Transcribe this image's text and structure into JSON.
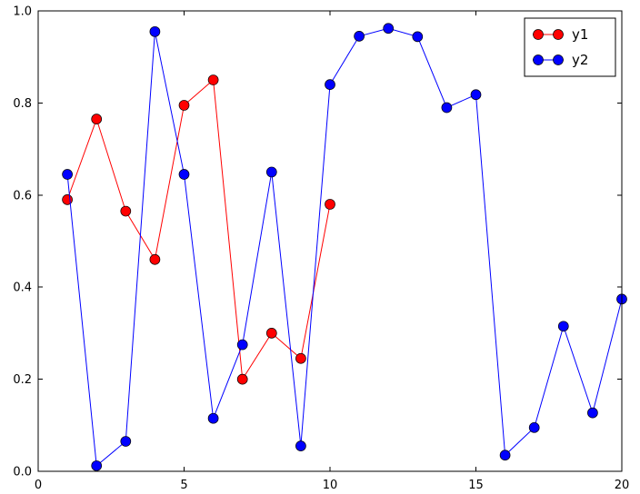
{
  "chart_data": {
    "type": "line",
    "title": "",
    "xlabel": "",
    "ylabel": "",
    "xlim": [
      0,
      20
    ],
    "ylim": [
      0,
      1.0
    ],
    "xticks": [
      0,
      5,
      10,
      15,
      20
    ],
    "xtick_labels": [
      "0",
      "5",
      "10",
      "15",
      "20"
    ],
    "yticks": [
      0,
      0.2,
      0.4,
      0.6,
      0.8,
      1.0
    ],
    "ytick_labels": [
      "0.0",
      "0.2",
      "0.4",
      "0.6",
      "0.8",
      "1.0"
    ],
    "grid": false,
    "background": "#ffffff",
    "frame_color": "#000000",
    "marker": "circle",
    "marker_edge_color": "#000000",
    "series": [
      {
        "name": "y1",
        "color": "#ff0000",
        "x": [
          1,
          2,
          3,
          4,
          5,
          6,
          7,
          8,
          9,
          10
        ],
        "values": [
          0.59,
          0.765,
          0.565,
          0.46,
          0.795,
          0.85,
          0.2,
          0.3,
          0.245,
          0.58
        ]
      },
      {
        "name": "y2",
        "color": "#0000ff",
        "x": [
          1,
          2,
          3,
          4,
          5,
          6,
          7,
          8,
          9,
          10,
          11,
          12,
          13,
          14,
          15,
          16,
          17,
          18,
          19,
          20
        ],
        "values": [
          0.645,
          0.012,
          0.065,
          0.955,
          0.645,
          0.115,
          0.275,
          0.65,
          0.055,
          0.84,
          0.945,
          0.962,
          0.944,
          0.79,
          0.818,
          0.035,
          0.095,
          0.315,
          0.127,
          0.374
        ]
      }
    ],
    "legend": {
      "position": "upper right",
      "entries": [
        "y1",
        "y2"
      ]
    }
  }
}
